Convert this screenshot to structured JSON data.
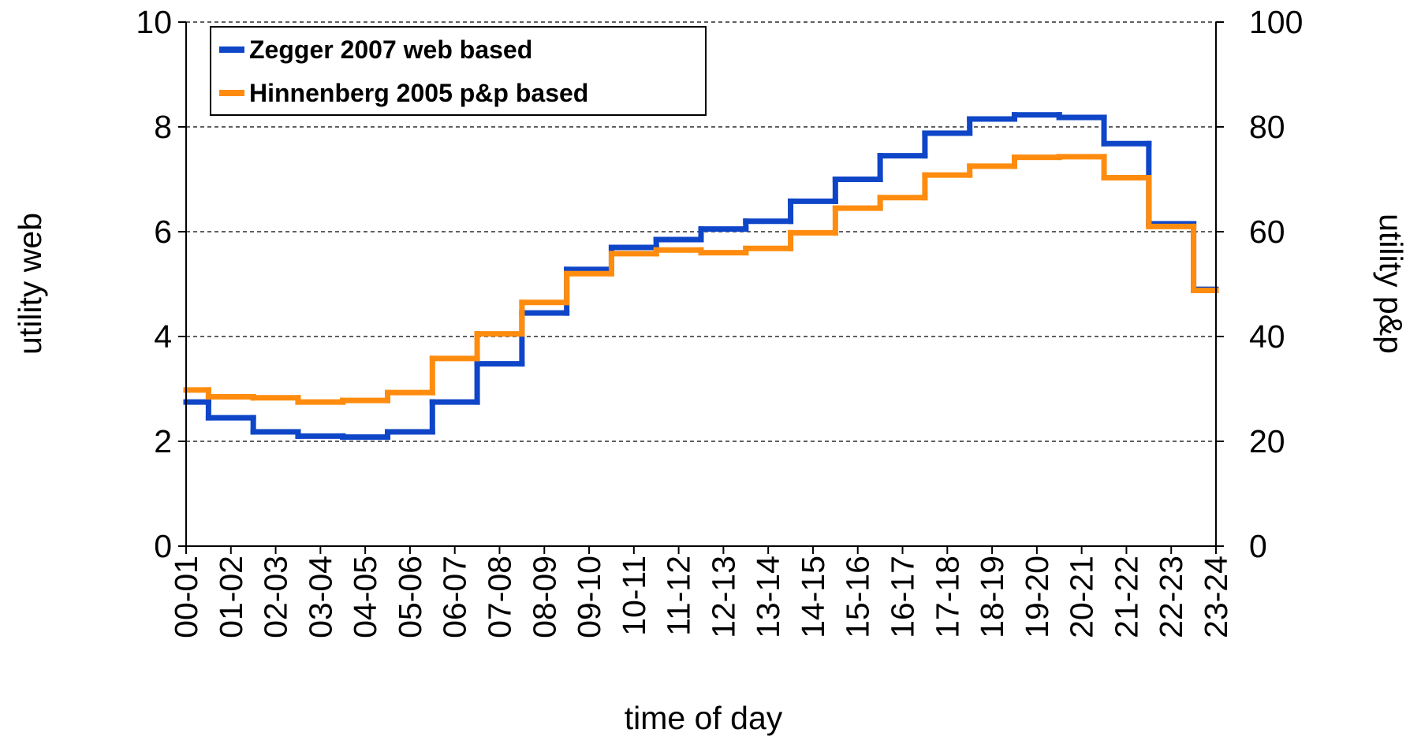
{
  "chart_data": {
    "type": "step",
    "xlabel": "time of day",
    "ylabel": "utility web",
    "y2label": "utility p&p",
    "categories": [
      "00-01",
      "01-02",
      "02-03",
      "03-04",
      "04-05",
      "05-06",
      "06-07",
      "07-08",
      "08-09",
      "09-10",
      "10-11",
      "11-12",
      "12-13",
      "13-14",
      "14-15",
      "15-16",
      "16-17",
      "17-18",
      "18-19",
      "19-20",
      "20-21",
      "21-22",
      "22-23",
      "23-24"
    ],
    "series": [
      {
        "name": "Zegger 2007 web based",
        "color": "#0f46c8",
        "axis": "y",
        "values": [
          2.75,
          2.45,
          2.18,
          2.1,
          2.08,
          2.18,
          2.75,
          3.48,
          4.45,
          5.28,
          5.7,
          5.85,
          6.05,
          6.2,
          6.58,
          7.0,
          7.45,
          7.88,
          8.15,
          8.23,
          8.18,
          7.68,
          6.15,
          4.9
        ]
      },
      {
        "name": "Hinnenberg 2005 p&p based",
        "color": "#ff8c0f",
        "axis": "y2",
        "values": [
          29.8,
          28.5,
          28.3,
          27.5,
          27.8,
          29.3,
          35.8,
          40.5,
          46.5,
          52,
          55.8,
          56.5,
          56,
          56.8,
          59.8,
          64.5,
          66.5,
          70.8,
          72.5,
          74.2,
          74.3,
          70.3,
          61,
          48.8
        ]
      }
    ],
    "ylim": [
      0,
      10
    ],
    "yticks": [
      0,
      2,
      4,
      6,
      8,
      10
    ],
    "y2lim": [
      0,
      100
    ],
    "y2ticks": [
      0,
      20,
      40,
      60,
      80,
      100
    ],
    "grid": true,
    "legend": "upper left"
  }
}
